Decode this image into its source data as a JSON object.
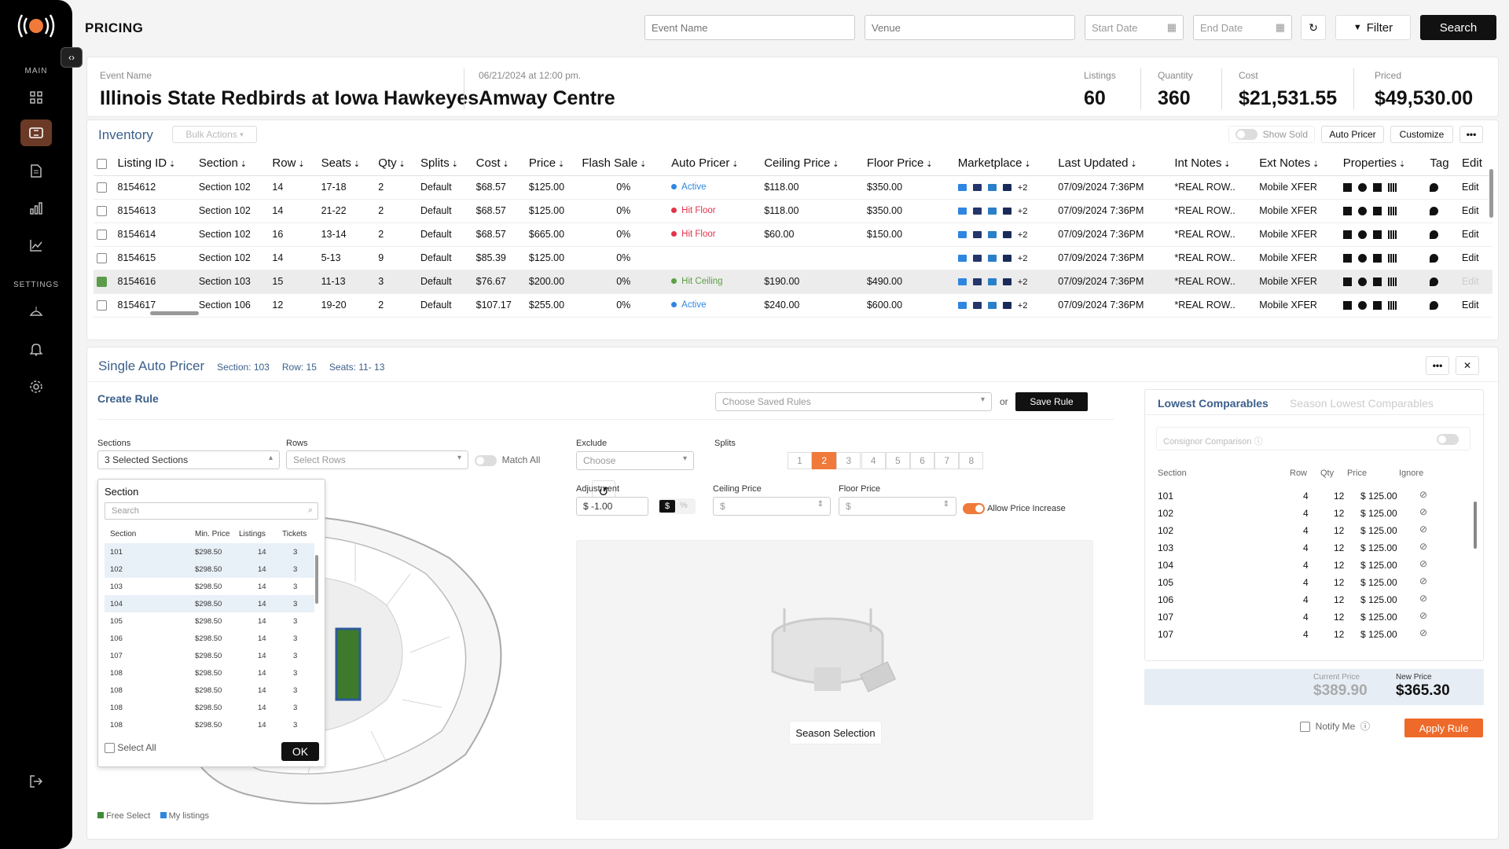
{
  "sidebar": {
    "main_label": "MAIN",
    "settings_label": "SETTINGS"
  },
  "header": {
    "title": "PRICING",
    "event_placeholder": "Event Name",
    "venue_placeholder": "Venue",
    "start_placeholder": "Start Date",
    "end_placeholder": "End Date",
    "filter_label": "Filter",
    "search_label": "Search"
  },
  "event": {
    "name_label": "Event Name",
    "name": "Illinois State Redbirds at Iowa Hawkeyes",
    "date": "06/21/2024 at 12:00 pm.",
    "venue": "Amway Centre",
    "stats": [
      {
        "label": "Listings",
        "value": "60"
      },
      {
        "label": "Quantity",
        "value": "360"
      },
      {
        "label": "Cost",
        "value": "$21,531.55"
      },
      {
        "label": "Priced",
        "value": "$49,530.00"
      }
    ]
  },
  "inventory": {
    "title": "Inventory",
    "bulk_actions": "Bulk Actions",
    "show_sold": "Show Sold",
    "auto_pricer": "Auto Pricer",
    "customize": "Customize",
    "columns": [
      "Listing ID",
      "Section",
      "Row",
      "Seats",
      "Qty",
      "Splits",
      "Cost",
      "Price",
      "Flash Sale",
      "Auto Pricer",
      "Ceiling Price",
      "Floor Price",
      "Marketplace",
      "Last Updated",
      "Int Notes",
      "Ext Notes",
      "Properties",
      "Tag",
      "Edit"
    ],
    "rows": [
      {
        "id": "8154612",
        "section": "Section 102",
        "row": "14",
        "seats": "17-18",
        "qty": "2",
        "splits": "Default",
        "cost": "$68.57",
        "price": "$125.00",
        "flash": "0%",
        "status": "Active",
        "status_color": "#2f86e0",
        "ceiling": "$118.00",
        "floor": "$350.00",
        "more": "+2",
        "updated": "07/09/2024 7:36PM",
        "int": "*REAL ROW..",
        "ext": "Mobile XFER",
        "edit": "Edit",
        "selected": false
      },
      {
        "id": "8154613",
        "section": "Section 102",
        "row": "14",
        "seats": "21-22",
        "qty": "2",
        "splits": "Default",
        "cost": "$68.57",
        "price": "$125.00",
        "flash": "0%",
        "status": "Hit Floor",
        "status_color": "#e0344a",
        "ceiling": "$118.00",
        "floor": "$350.00",
        "more": "+2",
        "updated": "07/09/2024 7:36PM",
        "int": "*REAL ROW..",
        "ext": "Mobile XFER",
        "edit": "Edit",
        "selected": false
      },
      {
        "id": "8154614",
        "section": "Section 102",
        "row": "16",
        "seats": "13-14",
        "qty": "2",
        "splits": "Default",
        "cost": "$68.57",
        "price": "$665.00",
        "flash": "0%",
        "status": "Hit Floor",
        "status_color": "#e0344a",
        "ceiling": "$60.00",
        "floor": "$150.00",
        "more": "+2",
        "updated": "07/09/2024 7:36PM",
        "int": "*REAL ROW..",
        "ext": "Mobile XFER",
        "edit": "Edit",
        "selected": false
      },
      {
        "id": "8154615",
        "section": "Section 102",
        "row": "14",
        "seats": "5-13",
        "qty": "9",
        "splits": "Default",
        "cost": "$85.39",
        "price": "$125.00",
        "flash": "0%",
        "status": "",
        "status_color": "",
        "ceiling": "",
        "floor": "",
        "more": "+2",
        "updated": "07/09/2024 7:36PM",
        "int": "*REAL ROW..",
        "ext": "Mobile XFER",
        "edit": "Edit",
        "selected": false
      },
      {
        "id": "8154616",
        "section": "Section 103",
        "row": "15",
        "seats": "11-13",
        "qty": "3",
        "splits": "Default",
        "cost": "$76.67",
        "price": "$200.00",
        "flash": "0%",
        "status": "Hit Ceiling",
        "status_color": "#5c9f45",
        "ceiling": "$190.00",
        "floor": "$490.00",
        "more": "+2",
        "updated": "07/09/2024 7:36PM",
        "int": "*REAL ROW..",
        "ext": "Mobile XFER",
        "edit": "Edit",
        "selected": true
      },
      {
        "id": "8154617",
        "section": "Section 106",
        "row": "12",
        "seats": "19-20",
        "qty": "2",
        "splits": "Default",
        "cost": "$107.17",
        "price": "$255.00",
        "flash": "0%",
        "status": "Active",
        "status_color": "#2f86e0",
        "ceiling": "$240.00",
        "floor": "$600.00",
        "more": "+2",
        "updated": "07/09/2024 7:36PM",
        "int": "*REAL ROW..",
        "ext": "Mobile XFER",
        "edit": "Edit",
        "selected": false
      }
    ]
  },
  "pricer": {
    "title": "Single Auto Pricer",
    "section": "Section: 103",
    "row": "Row: 15",
    "seats": "Seats: 11- 13",
    "create_rule": "Create Rule",
    "saved_rules_placeholder": "Choose Saved Rules",
    "or": "or",
    "save_rule": "Save Rule",
    "sections_label": "Sections",
    "sections_value": "3 Selected Sections",
    "rows_label": "Rows",
    "rows_placeholder": "Select Rows",
    "match_all": "Match All",
    "exclude_label": "Exclude",
    "exclude_placeholder": "Choose",
    "splits_label": "Splits",
    "splits": [
      "1",
      "2",
      "3",
      "4",
      "5",
      "6",
      "7",
      "8"
    ],
    "adjustment_label": "Adjustment",
    "adjustment_value": "$ -1.00",
    "unit_dollar": "$",
    "unit_pct": "%",
    "ceiling_label": "Ceiling Price",
    "ceiling_placeholder": "$",
    "floor_label": "Floor Price",
    "floor_placeholder": "$",
    "allow_increase": "Allow Price Increase",
    "season_selection": "Season Selection",
    "legend_free": "Free Select",
    "legend_mine": "My listings"
  },
  "section_popup": {
    "title": "Section",
    "search_placeholder": "Search",
    "headers": [
      "Section",
      "Min. Price",
      "Listings",
      "Tickets"
    ],
    "rows": [
      [
        "101",
        "$298.50",
        "14",
        "3"
      ],
      [
        "102",
        "$298.50",
        "14",
        "3"
      ],
      [
        "103",
        "$298.50",
        "14",
        "3"
      ],
      [
        "104",
        "$298.50",
        "14",
        "3"
      ],
      [
        "105",
        "$298.50",
        "14",
        "3"
      ],
      [
        "106",
        "$298.50",
        "14",
        "3"
      ],
      [
        "107",
        "$298.50",
        "14",
        "3"
      ],
      [
        "108",
        "$298.50",
        "14",
        "3"
      ],
      [
        "108",
        "$298.50",
        "14",
        "3"
      ],
      [
        "108",
        "$298.50",
        "14",
        "3"
      ],
      [
        "108",
        "$298.50",
        "14",
        "3"
      ]
    ],
    "select_all": "Select All",
    "ok": "OK"
  },
  "comparables": {
    "tab_active": "Lowest Comparables",
    "tab_inactive": "Season Lowest Comparables",
    "consignor": "Consignor Comparison",
    "headers": [
      "Section",
      "Row",
      "Qty",
      "Price",
      "Ignore"
    ],
    "rows": [
      [
        "101",
        "4",
        "12",
        "$ 125.00"
      ],
      [
        "102",
        "4",
        "12",
        "$ 125.00"
      ],
      [
        "102",
        "4",
        "12",
        "$ 125.00"
      ],
      [
        "103",
        "4",
        "12",
        "$ 125.00"
      ],
      [
        "104",
        "4",
        "12",
        "$ 125.00"
      ],
      [
        "105",
        "4",
        "12",
        "$ 125.00"
      ],
      [
        "106",
        "4",
        "12",
        "$ 125.00"
      ],
      [
        "107",
        "4",
        "12",
        "$ 125.00"
      ],
      [
        "107",
        "4",
        "12",
        "$ 125.00"
      ]
    ],
    "current_price_label": "Current Price",
    "current_price": "$389.90",
    "new_price_label": "New Price",
    "new_price": "$365.30",
    "notify_me": "Notify Me",
    "apply_rule": "Apply Rule"
  }
}
